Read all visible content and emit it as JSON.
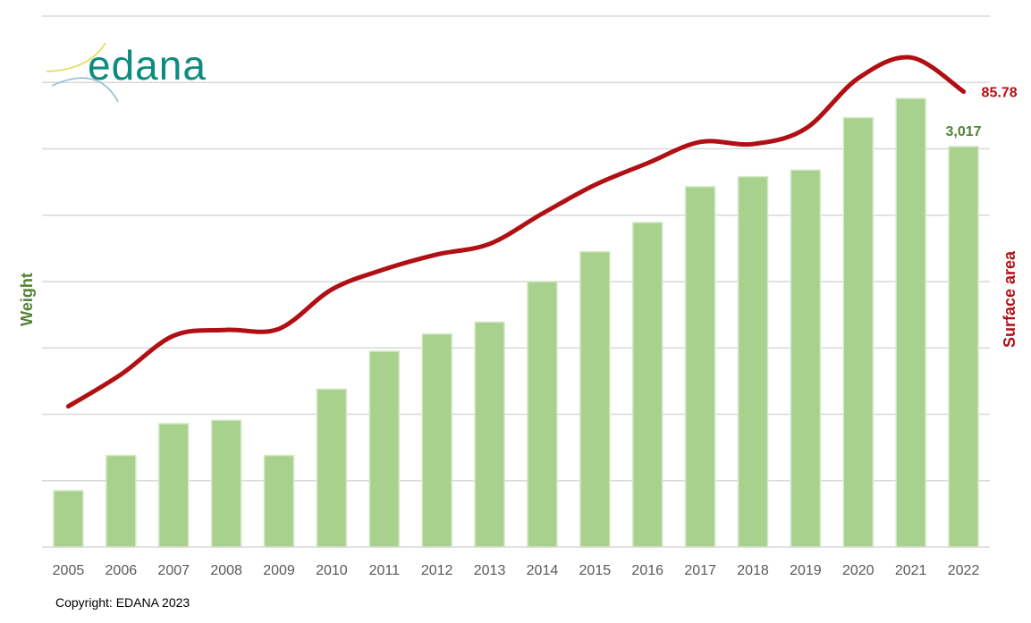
{
  "logo": {
    "text": "edana"
  },
  "copyright": "Copyright: EDANA 2023",
  "colors": {
    "bar": "#a9d18e",
    "bar_stroke": "#d6e9c8",
    "line": "#b00f14",
    "weight_text": "#548235",
    "grid": "#d9d9d9",
    "tick": "#595959"
  },
  "chart_data": {
    "type": "bar",
    "categories": [
      "2005",
      "2006",
      "2007",
      "2008",
      "2009",
      "2010",
      "2011",
      "2012",
      "2013",
      "2014",
      "2015",
      "2016",
      "2017",
      "2018",
      "2019",
      "2020",
      "2021",
      "2022"
    ],
    "ylabel": "Weight",
    "y2label": "Surface area",
    "ylim": [
      0,
      4000
    ],
    "y2lim": [
      0,
      100
    ],
    "grid": true,
    "series": [
      {
        "type": "bar",
        "axis": "left",
        "values": [
          425,
          690,
          930,
          955,
          690,
          1190,
          1475,
          1605,
          1695,
          2000,
          2225,
          2445,
          2715,
          2790,
          2840,
          3235,
          3380,
          3017
        ],
        "last_label": "3,017"
      },
      {
        "type": "line",
        "axis": "right",
        "values": [
          26.5,
          32.5,
          39.8,
          40.9,
          41.1,
          48.5,
          52.3,
          55.1,
          57.1,
          62.8,
          68.2,
          72.3,
          76.3,
          75.9,
          78.8,
          88.3,
          92.2,
          85.78
        ],
        "last_label": "85.78"
      }
    ]
  }
}
